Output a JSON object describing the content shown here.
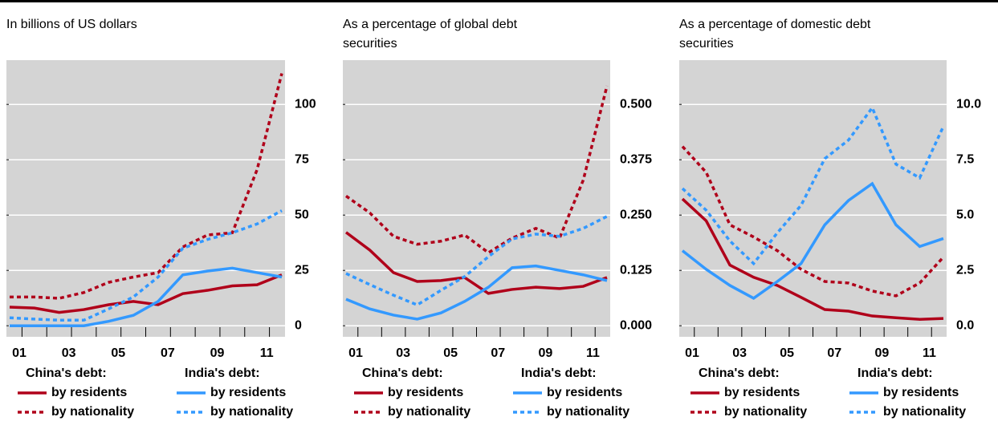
{
  "chart_data": [
    {
      "type": "line",
      "title": "In billions of US dollars",
      "categories": [
        "01",
        null,
        "03",
        null,
        "05",
        null,
        "07",
        null,
        "09",
        null,
        "11",
        null
      ],
      "legend_titles": [
        "China's debt:",
        "India's debt:"
      ],
      "series": [
        {
          "name": "by residents",
          "color": "#b0001a",
          "style": "solid",
          "values": [
            8.4,
            8,
            6,
            7.3,
            9.5,
            11,
            9.5,
            14.5,
            16,
            18,
            18.5,
            23
          ]
        },
        {
          "name": "by nationality",
          "color": "#b0001a",
          "style": "dotted",
          "values": [
            13,
            13,
            12.4,
            15,
            19.6,
            22,
            24,
            35.6,
            41,
            42,
            70.5,
            114
          ]
        },
        {
          "name": "by residents",
          "color": "#3399ff",
          "style": "solid",
          "values": [
            0,
            0,
            0,
            0,
            2,
            4.7,
            11,
            23,
            24.7,
            26,
            24,
            22
          ]
        },
        {
          "name": "by nationality",
          "color": "#3399ff",
          "style": "dotted",
          "values": [
            3.6,
            3,
            2.5,
            2.5,
            7.6,
            13,
            22,
            35,
            39,
            42,
            46,
            52
          ]
        }
      ],
      "ylim": [
        -5,
        120
      ],
      "yticks": [
        0,
        25,
        50,
        75,
        100
      ],
      "grid": true
    },
    {
      "type": "line",
      "title": "As a percentage of global debt securities",
      "categories": [
        "01",
        null,
        "03",
        null,
        "05",
        null,
        "07",
        null,
        "09",
        null,
        "11",
        null
      ],
      "legend_titles": [
        "China's debt:",
        "India's debt:"
      ],
      "series": [
        {
          "name": "by residents",
          "color": "#b0001a",
          "style": "solid",
          "values": [
            0.211,
            0.171,
            0.12,
            0.1,
            0.102,
            0.109,
            0.073,
            0.082,
            0.087,
            0.084,
            0.089,
            0.109
          ]
        },
        {
          "name": "by nationality",
          "color": "#b0001a",
          "style": "dotted",
          "values": [
            0.293,
            0.255,
            0.202,
            0.184,
            0.191,
            0.205,
            0.165,
            0.198,
            0.22,
            0.198,
            0.329,
            0.542
          ]
        },
        {
          "name": "by residents",
          "color": "#3399ff",
          "style": "solid",
          "values": [
            0.06,
            0.038,
            0.024,
            0.015,
            0.029,
            0.055,
            0.087,
            0.131,
            0.135,
            0.125,
            0.115,
            0.102
          ]
        },
        {
          "name": "by nationality",
          "color": "#3399ff",
          "style": "dotted",
          "values": [
            0.118,
            0.093,
            0.069,
            0.047,
            0.08,
            0.111,
            0.156,
            0.196,
            0.207,
            0.202,
            0.22,
            0.247
          ]
        }
      ],
      "ylim": [
        -0.025,
        0.6
      ],
      "yticks": [
        {
          "value": 0,
          "label": "0.000"
        },
        0.125,
        {
          "value": 0.25,
          "label": "0.250"
        },
        0.375,
        {
          "value": 0.5,
          "label": "0.500"
        }
      ],
      "grid": true
    },
    {
      "type": "line",
      "title": "As a percentage of domestic debt securities",
      "categories": [
        "01",
        null,
        "03",
        null,
        "05",
        null,
        "07",
        null,
        "09",
        null,
        "11",
        null
      ],
      "legend_titles": [
        "China's debt:",
        "India's debt:"
      ],
      "series": [
        {
          "name": "by residents",
          "color": "#b0001a",
          "style": "solid",
          "values": [
            5.73,
            4.74,
            2.74,
            2.19,
            1.82,
            1.28,
            0.73,
            0.66,
            0.44,
            0.36,
            0.29,
            0.33
          ]
        },
        {
          "name": "by nationality",
          "color": "#b0001a",
          "style": "dotted",
          "values": [
            8.1,
            6.93,
            4.56,
            4.01,
            3.39,
            2.55,
            2.0,
            1.93,
            1.57,
            1.35,
            1.93,
            3.1
          ]
        },
        {
          "name": "by residents",
          "color": "#3399ff",
          "style": "solid",
          "values": [
            3.39,
            2.55,
            1.82,
            1.24,
            2.0,
            2.81,
            4.56,
            5.66,
            6.42,
            4.56,
            3.58,
            3.94
          ]
        },
        {
          "name": "by nationality",
          "color": "#3399ff",
          "style": "dotted",
          "values": [
            6.2,
            5.22,
            3.83,
            2.81,
            4.2,
            5.44,
            7.55,
            8.39,
            9.85,
            7.3,
            6.68,
            9.01
          ]
        }
      ],
      "ylim": [
        -0.5,
        12
      ],
      "yticks": [
        {
          "value": 0,
          "label": "0.0"
        },
        2.5,
        {
          "value": 5,
          "label": "5.0"
        },
        7.5,
        {
          "value": 10,
          "label": "10.0"
        }
      ],
      "grid": true
    }
  ]
}
